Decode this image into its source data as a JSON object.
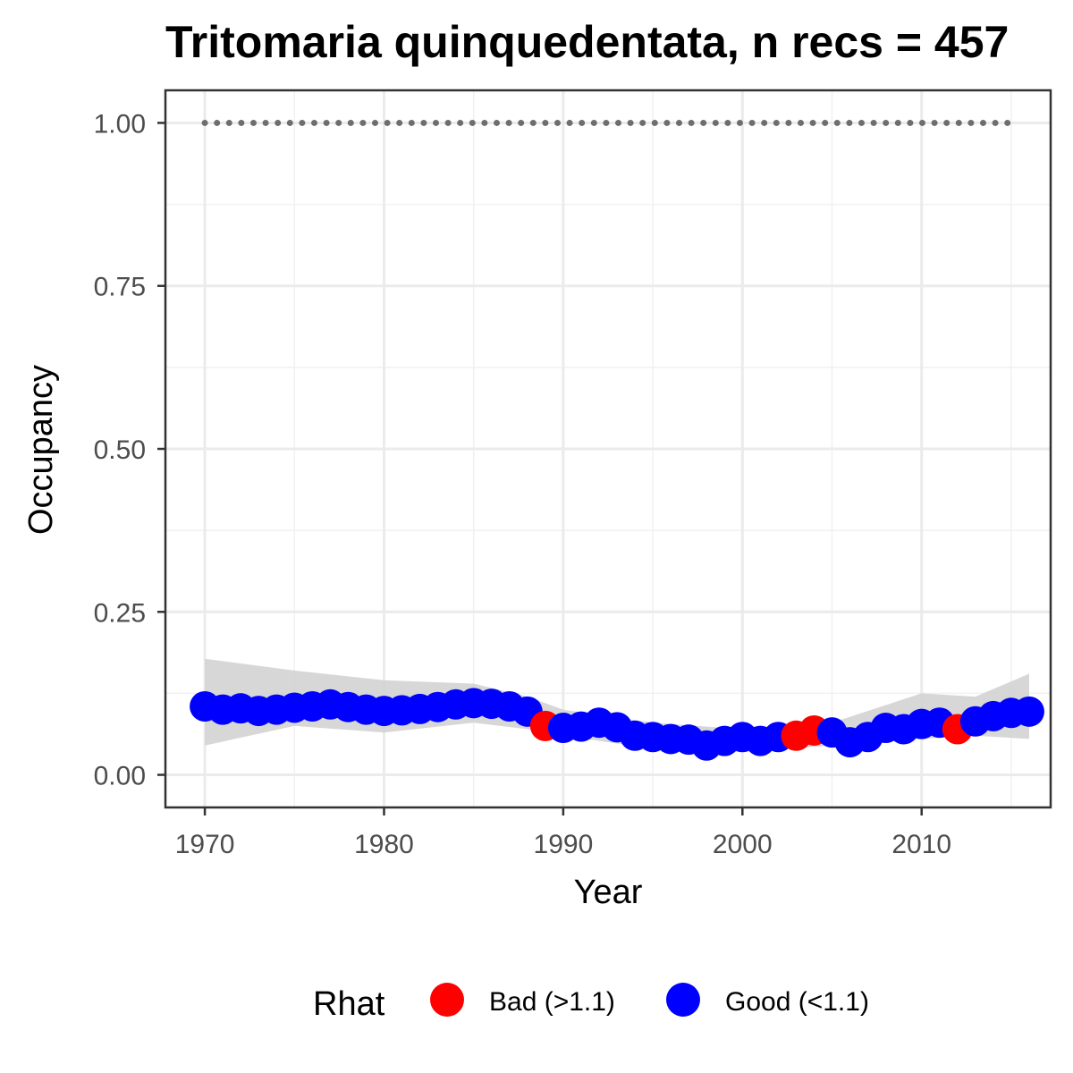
{
  "chart_data": {
    "type": "scatter",
    "title": "Tritomaria quinquedentata, n recs = 457",
    "xlabel": "Year",
    "ylabel": "Occupancy",
    "xlim": [
      1967.8,
      2017.2
    ],
    "ylim": [
      -0.05,
      1.05
    ],
    "x_ticks": [
      1970,
      1980,
      1990,
      2000,
      2010
    ],
    "x_tick_labels": [
      "1970",
      "1980",
      "1990",
      "2000",
      "2010"
    ],
    "y_ticks": [
      0,
      0.25,
      0.5,
      0.75,
      1.0
    ],
    "y_tick_labels": [
      "0.00",
      "0.25",
      "0.50",
      "0.75",
      "1.00"
    ],
    "grid": true,
    "legend": {
      "title": "Rhat",
      "position": "bottom",
      "entries": [
        {
          "label": "Bad (>1.1)",
          "color": "#ff0000"
        },
        {
          "label": "Good (<1.1)",
          "color": "#0000ff"
        }
      ]
    },
    "colors": {
      "bad": "#ff0000",
      "good": "#0000ff",
      "ribbon": "#d3d3d3",
      "reference": "#6e6e6e"
    },
    "reference_line": {
      "style": "dotted",
      "y": 1.0,
      "x_start": 1970,
      "x_end": 2015
    },
    "years": [
      1970,
      1971,
      1972,
      1973,
      1974,
      1975,
      1976,
      1977,
      1978,
      1979,
      1980,
      1981,
      1982,
      1983,
      1984,
      1985,
      1986,
      1987,
      1988,
      1989,
      1990,
      1991,
      1992,
      1993,
      1994,
      1995,
      1996,
      1997,
      1998,
      1999,
      2000,
      2001,
      2002,
      2003,
      2004,
      2005,
      2006,
      2007,
      2008,
      2009,
      2010,
      2011,
      2012,
      2013,
      2014,
      2015,
      2016
    ],
    "occupancy": [
      0.105,
      0.1,
      0.102,
      0.098,
      0.1,
      0.103,
      0.105,
      0.108,
      0.104,
      0.1,
      0.098,
      0.099,
      0.101,
      0.104,
      0.108,
      0.11,
      0.109,
      0.105,
      0.097,
      0.075,
      0.072,
      0.074,
      0.08,
      0.073,
      0.06,
      0.058,
      0.055,
      0.054,
      0.045,
      0.052,
      0.058,
      0.052,
      0.058,
      0.06,
      0.068,
      0.065,
      0.05,
      0.058,
      0.072,
      0.07,
      0.078,
      0.08,
      0.07,
      0.082,
      0.09,
      0.095,
      0.097
    ],
    "rhat": [
      "Good",
      "Good",
      "Good",
      "Good",
      "Good",
      "Good",
      "Good",
      "Good",
      "Good",
      "Good",
      "Good",
      "Good",
      "Good",
      "Good",
      "Good",
      "Good",
      "Good",
      "Good",
      "Good",
      "Bad",
      "Good",
      "Good",
      "Good",
      "Good",
      "Good",
      "Good",
      "Good",
      "Good",
      "Good",
      "Good",
      "Good",
      "Good",
      "Good",
      "Bad",
      "Bad",
      "Good",
      "Good",
      "Good",
      "Good",
      "Good",
      "Good",
      "Good",
      "Bad",
      "Good",
      "Good",
      "Good",
      "Good"
    ],
    "ribbon": {
      "x": [
        1970,
        1975,
        1980,
        1985,
        1988,
        1990,
        1995,
        2000,
        2005,
        2010,
        2013,
        2016
      ],
      "lower": [
        0.045,
        0.075,
        0.065,
        0.08,
        0.07,
        0.06,
        0.04,
        0.035,
        0.045,
        0.055,
        0.06,
        0.055
      ],
      "upper": [
        0.178,
        0.16,
        0.145,
        0.14,
        0.12,
        0.1,
        0.08,
        0.07,
        0.08,
        0.125,
        0.12,
        0.155
      ]
    }
  }
}
